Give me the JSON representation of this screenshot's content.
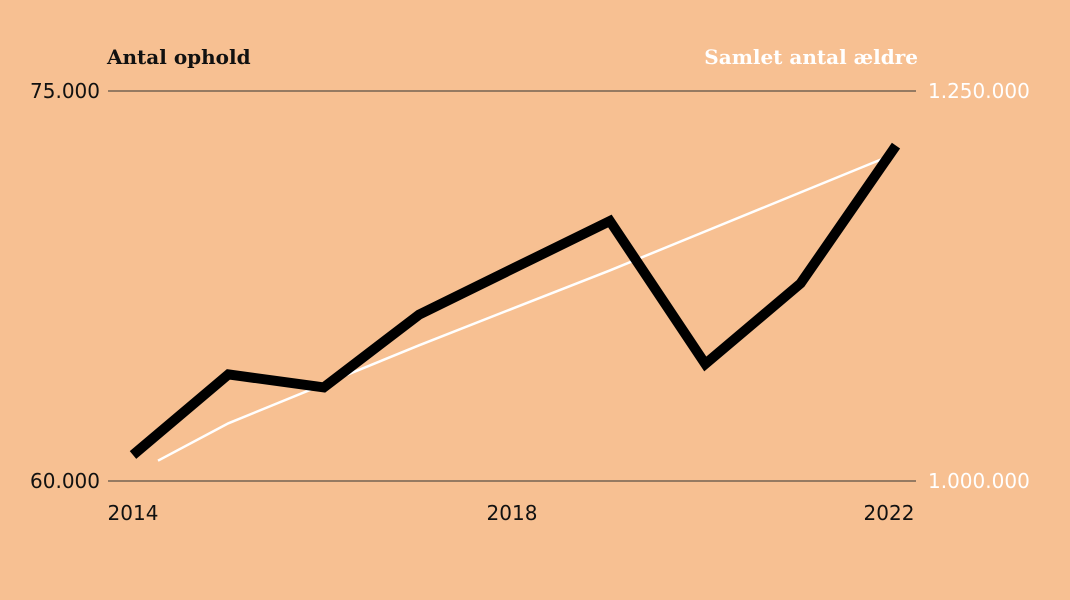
{
  "chart_data": {
    "type": "line",
    "x": [
      2014,
      2015,
      2016,
      2017,
      2018,
      2019,
      2020,
      2021,
      2022
    ],
    "x_tick_labels": [
      "2014",
      "2018",
      "2022"
    ],
    "series": [
      {
        "name": "Antal ophold",
        "axis": "left",
        "color": "#000000",
        "values": [
          61000,
          64100,
          63600,
          66400,
          68200,
          70000,
          64500,
          67600,
          72900
        ]
      },
      {
        "name": "Samlet antal ældre",
        "axis": "right",
        "color": "#ffffff",
        "values": [
          1013000,
          1037000,
          1062000,
          1087000,
          1111000,
          1135000,
          1160000,
          1185000,
          1209000
        ]
      }
    ],
    "left_axis": {
      "title": "Antal ophold",
      "ylim": [
        60000,
        75000
      ],
      "tick_labels": [
        "75.000",
        "60.000"
      ],
      "color": "#111111"
    },
    "right_axis": {
      "title": "Samlet antal ældre",
      "ylim": [
        1000000,
        1250000
      ],
      "tick_labels": [
        "1.250.000",
        "1.000.000"
      ],
      "color": "#ffffff"
    },
    "grid": "top and bottom horizontal lines",
    "colors": {
      "background": "#f7c092",
      "grid": "#333333"
    }
  }
}
